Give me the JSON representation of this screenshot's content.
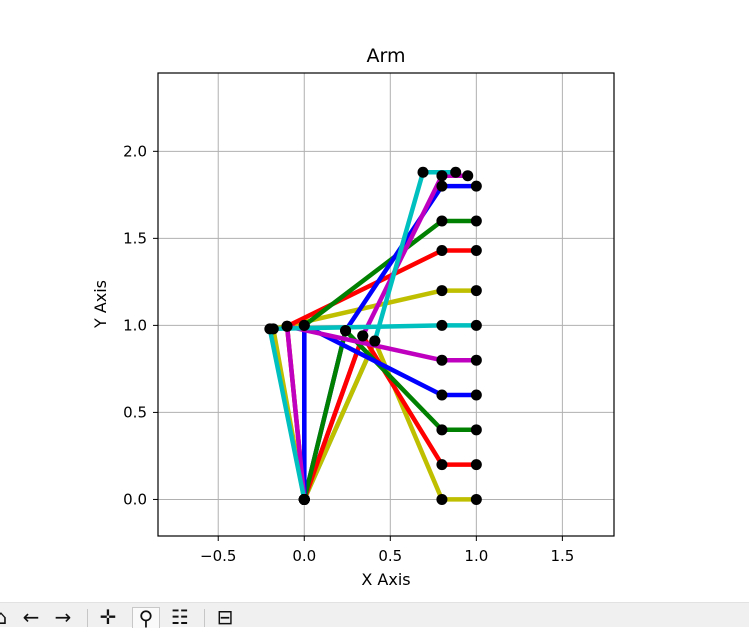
{
  "chart_data": {
    "type": "line",
    "title": "Arm",
    "xlabel": "X Axis",
    "ylabel": "Y Axis",
    "xlim": [
      -0.85,
      1.8
    ],
    "ylim": [
      -0.21,
      2.45
    ],
    "xticks": [
      -0.5,
      0.0,
      0.5,
      1.0,
      1.5
    ],
    "xtick_labels": [
      "−0.5",
      "0.0",
      "0.5",
      "1.0",
      "1.5"
    ],
    "yticks": [
      0.0,
      0.5,
      1.0,
      1.5,
      2.0
    ],
    "ytick_labels": [
      "0.0",
      "0.5",
      "1.0",
      "1.5",
      "2.0"
    ],
    "grid": true,
    "series": [
      {
        "color": "#bfbf00",
        "points": [
          [
            0,
            0
          ],
          [
            -0.18,
            0.98
          ],
          [
            0.8,
            1.2
          ],
          [
            1.0,
            1.2
          ]
        ]
      },
      {
        "color": "#ff0000",
        "points": [
          [
            0,
            0
          ],
          [
            -0.1,
            0.995
          ],
          [
            0.8,
            1.43
          ],
          [
            1.0,
            1.43
          ]
        ]
      },
      {
        "color": "#008000",
        "points": [
          [
            0,
            0
          ],
          [
            0.0,
            1.0
          ],
          [
            0.8,
            1.6
          ],
          [
            1.0,
            1.6
          ]
        ]
      },
      {
        "color": "#0000ff",
        "points": [
          [
            0,
            0
          ],
          [
            0.24,
            0.97
          ],
          [
            0.8,
            1.8
          ],
          [
            1.0,
            1.8
          ]
        ]
      },
      {
        "color": "#bf00bf",
        "points": [
          [
            0,
            0
          ],
          [
            0.34,
            0.94
          ],
          [
            0.8,
            1.86
          ],
          [
            0.95,
            1.86
          ]
        ]
      },
      {
        "color": "#00bfbf",
        "points": [
          [
            0,
            0
          ],
          [
            0.41,
            0.91
          ],
          [
            0.69,
            1.88
          ],
          [
            0.88,
            1.88
          ]
        ]
      },
      {
        "color": "#bfbf00",
        "points": [
          [
            0,
            0
          ],
          [
            0.41,
            0.91
          ],
          [
            0.8,
            0.0
          ],
          [
            1.0,
            0.0
          ]
        ]
      },
      {
        "color": "#ff0000",
        "points": [
          [
            0,
            0
          ],
          [
            0.34,
            0.94
          ],
          [
            0.8,
            0.2
          ],
          [
            1.0,
            0.2
          ]
        ]
      },
      {
        "color": "#008000",
        "points": [
          [
            0,
            0
          ],
          [
            0.24,
            0.97
          ],
          [
            0.8,
            0.4
          ],
          [
            1.0,
            0.4
          ]
        ]
      },
      {
        "color": "#0000ff",
        "points": [
          [
            0,
            0
          ],
          [
            0.0,
            1.0
          ],
          [
            0.8,
            0.6
          ],
          [
            1.0,
            0.6
          ]
        ]
      },
      {
        "color": "#bf00bf",
        "points": [
          [
            0,
            0
          ],
          [
            -0.1,
            0.995
          ],
          [
            0.8,
            0.8
          ],
          [
            1.0,
            0.8
          ]
        ]
      },
      {
        "color": "#00bfbf",
        "points": [
          [
            0,
            0
          ],
          [
            -0.2,
            0.98
          ],
          [
            0.8,
            1.0
          ],
          [
            1.0,
            1.0
          ]
        ]
      }
    ],
    "marker_color": "#000000"
  },
  "toolbar": {
    "buttons": [
      {
        "name": "home-icon",
        "glyph": "⌂"
      },
      {
        "name": "back-icon",
        "glyph": "←"
      },
      {
        "name": "forward-icon",
        "glyph": "→"
      },
      {
        "name": "pan-icon",
        "glyph": "✛"
      },
      {
        "name": "zoom-icon",
        "glyph": "⚲"
      },
      {
        "name": "configure-subplots-icon",
        "glyph": "☷"
      },
      {
        "name": "save-icon",
        "glyph": "⊟"
      }
    ]
  }
}
